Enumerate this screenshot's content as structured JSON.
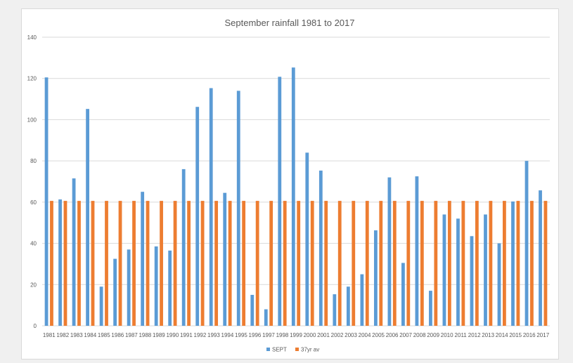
{
  "chart_data": {
    "type": "bar",
    "title": "September rainfall 1981 to 2017",
    "xlabel": "",
    "ylabel": "",
    "ylim": [
      0,
      140
    ],
    "yticks": [
      0,
      20,
      40,
      60,
      80,
      100,
      120,
      140
    ],
    "grid": true,
    "legend_position": "bottom",
    "categories": [
      "1981",
      "1982",
      "1983",
      "1984",
      "1985",
      "1986",
      "1987",
      "1988",
      "1989",
      "1990",
      "1991",
      "1992",
      "1993",
      "1994",
      "1995",
      "1996",
      "1997",
      "1998",
      "1999",
      "2000",
      "2001",
      "2002",
      "2003",
      "2004",
      "2005",
      "2006",
      "2007",
      "2008",
      "2009",
      "2010",
      "2011",
      "2012",
      "2013",
      "2014",
      "2015",
      "2016",
      "2017"
    ],
    "series": [
      {
        "name": "SEPT",
        "color": "#5b9bd5",
        "values": [
          120.5,
          61.3,
          71.5,
          105.2,
          19.0,
          32.5,
          37.0,
          65.0,
          38.5,
          36.5,
          76.0,
          106.2,
          115.3,
          64.5,
          114.0,
          15.0,
          8.0,
          120.8,
          125.3,
          84.0,
          75.3,
          15.3,
          19.0,
          25.0,
          46.3,
          72.0,
          30.5,
          72.5,
          17.0,
          54.0,
          52.0,
          43.5,
          54.0,
          40.0,
          60.3,
          80.0,
          65.7
        ]
      },
      {
        "name": "37yr av",
        "color": "#ed7d31",
        "values": [
          60.6,
          60.6,
          60.6,
          60.6,
          60.6,
          60.6,
          60.6,
          60.6,
          60.6,
          60.6,
          60.6,
          60.6,
          60.6,
          60.6,
          60.6,
          60.6,
          60.6,
          60.6,
          60.6,
          60.6,
          60.6,
          60.6,
          60.6,
          60.6,
          60.6,
          60.6,
          60.6,
          60.6,
          60.6,
          60.6,
          60.6,
          60.6,
          60.6,
          60.6,
          60.6,
          60.6,
          60.6
        ]
      }
    ],
    "colors": {
      "grid": "#d9d9d9",
      "text": "#595959",
      "border": "#d9d9d9"
    }
  }
}
